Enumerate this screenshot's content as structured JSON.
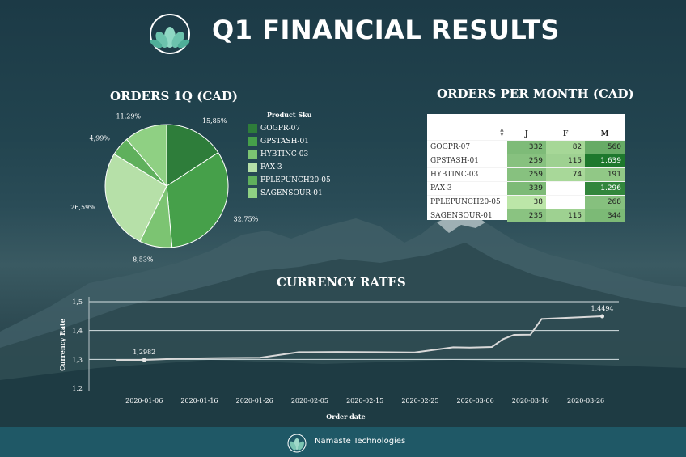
{
  "header": {
    "title": "Q1 FINANCIAL RESULTS",
    "logo_icon": "lotus-icon"
  },
  "footer": {
    "text": "Namaste Technologies",
    "logo_icon": "lotus-icon"
  },
  "chart_data": [
    {
      "type": "pie",
      "title": "ORDERS 1Q (CAD)",
      "legend_title": "Product Sku",
      "legend_position": "right",
      "slices": [
        {
          "label": "GOGPR-07",
          "value": 15.85,
          "display": "15,85%",
          "color": "#2e7d3a"
        },
        {
          "label": "GPSTASH-01",
          "value": 32.75,
          "display": "32,75%",
          "color": "#46a04a"
        },
        {
          "label": "HYBTINC-03",
          "value": 8.53,
          "display": "8,53%",
          "color": "#7cc472"
        },
        {
          "label": "PAX-3",
          "value": 26.59,
          "display": "26,59%",
          "color": "#b6e0a8"
        },
        {
          "label": "PPLEPUNCH20-05",
          "value": 4.99,
          "display": "4,99%",
          "color": "#5fb05c"
        },
        {
          "label": "SAGENSOUR-01",
          "value": 11.29,
          "display": "11,29%",
          "color": "#8fd083"
        }
      ]
    },
    {
      "type": "table",
      "title": "ORDERS PER MONTH (CAD)",
      "columns": [
        "J",
        "F",
        "M"
      ],
      "rows": [
        {
          "sku": "GOGPR-07",
          "values": [
            "332",
            "82",
            "560"
          ]
        },
        {
          "sku": "GPSTASH-01",
          "values": [
            "259",
            "115",
            "1.639"
          ]
        },
        {
          "sku": "HYBTINC-03",
          "values": [
            "259",
            "74",
            "191"
          ]
        },
        {
          "sku": "PAX-3",
          "values": [
            "339",
            "",
            "1.296"
          ]
        },
        {
          "sku": "PPLEPUNCH20-05",
          "values": [
            "38",
            "",
            "268"
          ]
        },
        {
          "sku": "SAGENSOUR-01",
          "values": [
            "235",
            "115",
            "344"
          ]
        }
      ]
    },
    {
      "type": "line",
      "title": "CURRENCY RATES",
      "xlabel": "Order date",
      "ylabel": "Currency Rate",
      "ylim": [
        1.2,
        1.5
      ],
      "yticks": [
        "1,2",
        "1,3",
        "1,4",
        "1,5"
      ],
      "xticks": [
        "2020-01-06",
        "2020-01-16",
        "2020-01-26",
        "2020-02-05",
        "2020-02-15",
        "2020-02-25",
        "2020-03-06",
        "2020-03-16",
        "2020-03-26"
      ],
      "grid": true,
      "annotations": [
        {
          "x": "2020-01-06",
          "y": 1.2982,
          "text": "1,2982"
        },
        {
          "x": "2020-03-29",
          "y": 1.4494,
          "text": "1,4494"
        }
      ],
      "series": [
        {
          "points": [
            [
              "2020-01-01",
              1.298
            ],
            [
              "2020-01-06",
              1.2982
            ],
            [
              "2020-01-13",
              1.303
            ],
            [
              "2020-01-20",
              1.305
            ],
            [
              "2020-01-27",
              1.306
            ],
            [
              "2020-02-03",
              1.325
            ],
            [
              "2020-02-10",
              1.326
            ],
            [
              "2020-02-17",
              1.325
            ],
            [
              "2020-02-24",
              1.324
            ],
            [
              "2020-03-02",
              1.342
            ],
            [
              "2020-03-05",
              1.341
            ],
            [
              "2020-03-09",
              1.343
            ],
            [
              "2020-03-11",
              1.37
            ],
            [
              "2020-03-13",
              1.385
            ],
            [
              "2020-03-16",
              1.386
            ],
            [
              "2020-03-18",
              1.44
            ],
            [
              "2020-03-29",
              1.4494
            ]
          ]
        }
      ]
    }
  ]
}
